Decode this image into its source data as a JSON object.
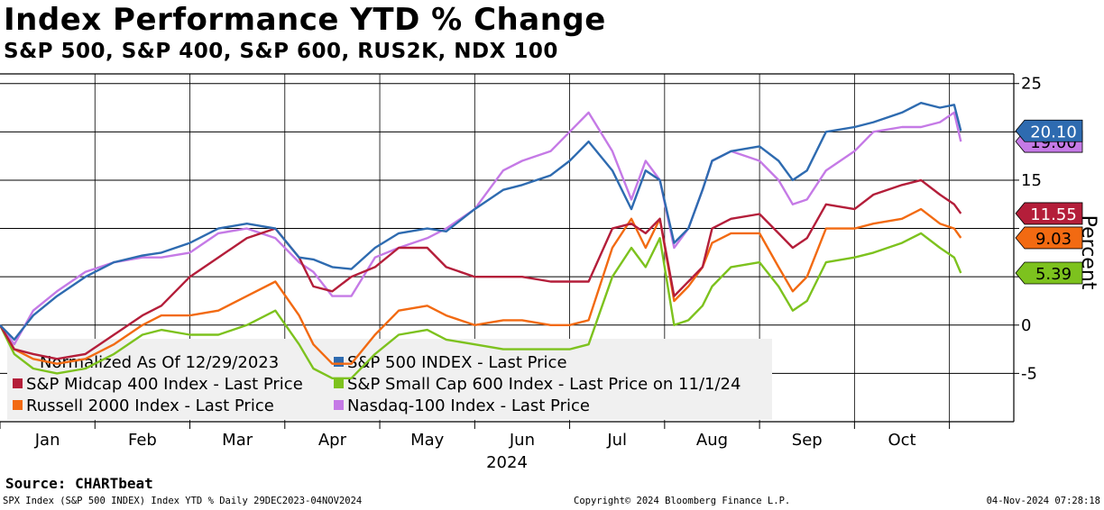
{
  "title": "Index Performance YTD % Change",
  "subtitle": "S&P 500, S&P 400, S&P 600, RUS2K, NDX 100",
  "source": "Source:  CHARTbeat",
  "footer": {
    "left": "SPX Index (S&P 500 INDEX) Index YTD %  Daily 29DEC2023-04NOV2024",
    "center": "Copyright© 2024 Bloomberg Finance L.P.",
    "right": "04-Nov-2024 07:28:18"
  },
  "chart_data": {
    "type": "line",
    "ylabel": "Percent",
    "xlabel": "2024",
    "ylim": [
      -10,
      26
    ],
    "yticks": [
      25,
      20,
      15,
      10,
      5,
      0,
      -5
    ],
    "ytick_labels": [
      "25",
      "",
      "15",
      "",
      "",
      "0",
      "-5"
    ],
    "xlim": [
      0,
      10.45
    ],
    "month_labels": [
      "Jan",
      "Feb",
      "Mar",
      "Apr",
      "May",
      "Jun",
      "Jul",
      "Aug",
      "Sep",
      "Oct"
    ],
    "legend_header": "Normalized As Of 12/29/2023",
    "grid": true,
    "series": [
      {
        "name": "S&P 500 INDEX - Last Price",
        "color": "#2e6bb0",
        "last_label": "20.10",
        "last": 20.1,
        "x": [
          0,
          0.15,
          0.35,
          0.6,
          0.9,
          1.2,
          1.5,
          1.7,
          2.0,
          2.3,
          2.6,
          2.9,
          3.15,
          3.3,
          3.5,
          3.7,
          3.95,
          4.2,
          4.5,
          4.7,
          5.0,
          5.3,
          5.5,
          5.8,
          6.0,
          6.2,
          6.45,
          6.65,
          6.8,
          6.95,
          7.1,
          7.25,
          7.4,
          7.5,
          7.7,
          8.0,
          8.2,
          8.35,
          8.5,
          8.7,
          9.0,
          9.2,
          9.5,
          9.7,
          9.9,
          10.05,
          10.12
        ],
        "y": [
          0,
          -1.5,
          1,
          3,
          5,
          6.5,
          7.2,
          7.5,
          8.5,
          10,
          10.5,
          10,
          7,
          6.8,
          6,
          5.8,
          8,
          9.5,
          10,
          9.7,
          12,
          14,
          14.5,
          15.5,
          17,
          19,
          16,
          12,
          16,
          15,
          8.5,
          10,
          14,
          17,
          18,
          18.5,
          17,
          15,
          16,
          20,
          20.5,
          21,
          22,
          23,
          22.5,
          22.8,
          20.1
        ]
      },
      {
        "name": "S&P Midcap 400 Index - Last Price",
        "color": "#b41e3a",
        "last_label": "11.55",
        "last": 11.55,
        "x": [
          0,
          0.15,
          0.35,
          0.6,
          0.9,
          1.2,
          1.5,
          1.7,
          2.0,
          2.3,
          2.6,
          2.9,
          3.15,
          3.3,
          3.5,
          3.7,
          3.95,
          4.2,
          4.5,
          4.7,
          5.0,
          5.3,
          5.5,
          5.8,
          6.0,
          6.2,
          6.45,
          6.65,
          6.8,
          6.95,
          7.1,
          7.25,
          7.4,
          7.5,
          7.7,
          8.0,
          8.2,
          8.35,
          8.5,
          8.7,
          9.0,
          9.2,
          9.5,
          9.7,
          9.9,
          10.05,
          10.12
        ],
        "y": [
          0,
          -2.5,
          -3,
          -3.5,
          -3,
          -1,
          1,
          2,
          5,
          7,
          9,
          10,
          7,
          4,
          3.5,
          5,
          6,
          8,
          8,
          6,
          5,
          5,
          5,
          4.5,
          4.5,
          4.5,
          10,
          10.5,
          9.5,
          11,
          3,
          4.5,
          6,
          10,
          11,
          11.5,
          9.5,
          8,
          9,
          12.5,
          12,
          13.5,
          14.5,
          15,
          13.5,
          12.5,
          11.55
        ]
      },
      {
        "name": "Russell 2000 Index - Last Price",
        "color": "#f26a12",
        "last_label": "9.03",
        "last": 9.03,
        "x": [
          0,
          0.15,
          0.35,
          0.6,
          0.9,
          1.2,
          1.5,
          1.7,
          2.0,
          2.3,
          2.6,
          2.9,
          3.15,
          3.3,
          3.5,
          3.7,
          3.95,
          4.2,
          4.5,
          4.7,
          5.0,
          5.3,
          5.5,
          5.8,
          6.0,
          6.2,
          6.45,
          6.65,
          6.8,
          6.95,
          7.1,
          7.25,
          7.4,
          7.5,
          7.7,
          8.0,
          8.2,
          8.35,
          8.5,
          8.7,
          9.0,
          9.2,
          9.5,
          9.7,
          9.9,
          10.05,
          10.12
        ],
        "y": [
          0,
          -2.5,
          -3.5,
          -4,
          -3.5,
          -2,
          0,
          1,
          1,
          1.5,
          3,
          4.5,
          1,
          -2,
          -4,
          -4,
          -1,
          1.5,
          2,
          1,
          0,
          0.5,
          0.5,
          0,
          0,
          0.5,
          8,
          11,
          8,
          11,
          2.5,
          4,
          6,
          8.5,
          9.5,
          9.5,
          6,
          3.5,
          5,
          10,
          10,
          10.5,
          11,
          12,
          10.5,
          10,
          9.03
        ]
      },
      {
        "name": "S&P Small Cap 600 Index - Last Price on 11/1/24",
        "color": "#7dc21e",
        "last_label": "5.39",
        "last": 5.39,
        "x": [
          0,
          0.15,
          0.35,
          0.6,
          0.9,
          1.2,
          1.5,
          1.7,
          2.0,
          2.3,
          2.6,
          2.9,
          3.15,
          3.3,
          3.5,
          3.7,
          3.95,
          4.2,
          4.5,
          4.7,
          5.0,
          5.3,
          5.5,
          5.8,
          6.0,
          6.2,
          6.45,
          6.65,
          6.8,
          6.95,
          7.1,
          7.25,
          7.4,
          7.5,
          7.7,
          8.0,
          8.2,
          8.35,
          8.5,
          8.7,
          9.0,
          9.2,
          9.5,
          9.7,
          9.9,
          10.05,
          10.12
        ],
        "y": [
          0,
          -3,
          -4.5,
          -5,
          -4.5,
          -3,
          -1,
          -0.5,
          -1,
          -1,
          0,
          1.5,
          -2,
          -4.5,
          -5.5,
          -5.5,
          -3,
          -1,
          -0.5,
          -1.5,
          -2,
          -2.5,
          -2.5,
          -2.5,
          -2.5,
          -2,
          5,
          8,
          6,
          9,
          0,
          0.5,
          2,
          4,
          6,
          6.5,
          4,
          1.5,
          2.5,
          6.5,
          7,
          7.5,
          8.5,
          9.5,
          8,
          7,
          5.39
        ]
      },
      {
        "name": "Nasdaq-100 Index - Last Price",
        "color": "#c57ae6",
        "last_label": "19.00",
        "last": 19.0,
        "x": [
          0,
          0.15,
          0.35,
          0.6,
          0.9,
          1.2,
          1.5,
          1.7,
          2.0,
          2.3,
          2.6,
          2.9,
          3.15,
          3.3,
          3.5,
          3.7,
          3.95,
          4.2,
          4.5,
          4.7,
          5.0,
          5.3,
          5.5,
          5.8,
          6.0,
          6.2,
          6.45,
          6.65,
          6.8,
          6.95,
          7.1,
          7.25,
          7.4,
          7.5,
          7.7,
          8.0,
          8.2,
          8.35,
          8.5,
          8.7,
          9.0,
          9.2,
          9.5,
          9.7,
          9.9,
          10.05,
          10.12
        ],
        "y": [
          0,
          -2,
          1.5,
          3.5,
          5.5,
          6.5,
          7,
          7,
          7.5,
          9.5,
          10,
          9,
          6.5,
          5.5,
          3,
          3,
          7,
          8,
          9,
          10,
          12,
          16,
          17,
          18,
          20,
          22,
          18,
          13,
          17,
          15,
          8,
          10,
          14,
          17,
          18,
          17,
          15,
          12.5,
          13,
          16,
          18,
          20,
          20.5,
          20.5,
          21,
          22,
          19
        ]
      }
    ]
  }
}
